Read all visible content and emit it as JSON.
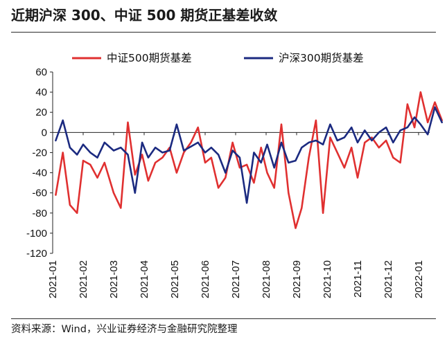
{
  "title": "近期沪深 300、中证 500 期货正基差收敛",
  "source": "资料来源：Wind，兴业证券经济与金融研究院整理",
  "chart_data": {
    "type": "line",
    "ylim": [
      -120,
      60
    ],
    "yticks": [
      60,
      40,
      20,
      0,
      -20,
      -40,
      -60,
      -80,
      -100,
      -120
    ],
    "xticks": [
      "2021-01",
      "2021-02",
      "2021-03",
      "2021-04",
      "2021-05",
      "2021-06",
      "2021-07",
      "2021-08",
      "2021-09",
      "2021-10",
      "2021-11",
      "2021-12",
      "2022-01"
    ],
    "x": [
      "2021-01-04",
      "2021-01-11",
      "2021-01-18",
      "2021-01-25",
      "2021-02-01",
      "2021-02-08",
      "2021-02-15",
      "2021-02-22",
      "2021-03-01",
      "2021-03-08",
      "2021-03-15",
      "2021-03-22",
      "2021-03-29",
      "2021-04-05",
      "2021-04-12",
      "2021-04-19",
      "2021-04-26",
      "2021-05-03",
      "2021-05-10",
      "2021-05-17",
      "2021-05-24",
      "2021-05-31",
      "2021-06-07",
      "2021-06-14",
      "2021-06-21",
      "2021-06-28",
      "2021-07-05",
      "2021-07-12",
      "2021-07-19",
      "2021-07-26",
      "2021-08-02",
      "2021-08-09",
      "2021-08-16",
      "2021-08-23",
      "2021-08-30",
      "2021-09-06",
      "2021-09-13",
      "2021-09-20",
      "2021-09-27",
      "2021-10-04",
      "2021-10-11",
      "2021-10-18",
      "2021-10-25",
      "2021-11-01",
      "2021-11-08",
      "2021-11-15",
      "2021-11-22",
      "2021-11-29",
      "2021-12-06",
      "2021-12-13",
      "2021-12-20",
      "2021-12-27",
      "2022-01-03",
      "2022-01-10",
      "2022-01-17",
      "2022-01-24"
    ],
    "series": [
      {
        "name": "中证500期货基差",
        "color": "#e03030",
        "values": [
          -62,
          -20,
          -72,
          -80,
          -28,
          -32,
          -45,
          -30,
          -60,
          -75,
          10,
          -42,
          -22,
          -48,
          -30,
          -25,
          -15,
          -40,
          -20,
          -10,
          5,
          -30,
          -25,
          -55,
          -45,
          -10,
          -35,
          -32,
          -50,
          -15,
          -40,
          -55,
          8,
          -60,
          -95,
          -75,
          -25,
          12,
          -80,
          -5,
          -20,
          -35,
          -15,
          -45,
          -10,
          -5,
          -15,
          -8,
          -25,
          -30,
          28,
          5,
          40,
          10,
          30,
          12
        ]
      },
      {
        "name": "沪深300期货基差",
        "color": "#1b2a80",
        "values": [
          -8,
          12,
          -15,
          -22,
          -12,
          -20,
          -25,
          -10,
          -18,
          -15,
          -22,
          -60,
          -10,
          -25,
          -15,
          -20,
          -18,
          8,
          -18,
          -14,
          -10,
          -20,
          -15,
          -22,
          -40,
          -18,
          -25,
          -70,
          -20,
          -30,
          -12,
          -35,
          -10,
          -30,
          -28,
          -15,
          -10,
          -8,
          -12,
          8,
          -8,
          -5,
          5,
          -10,
          2,
          -8,
          0,
          5,
          -10,
          2,
          5,
          15,
          8,
          -2,
          25,
          10
        ]
      }
    ]
  }
}
